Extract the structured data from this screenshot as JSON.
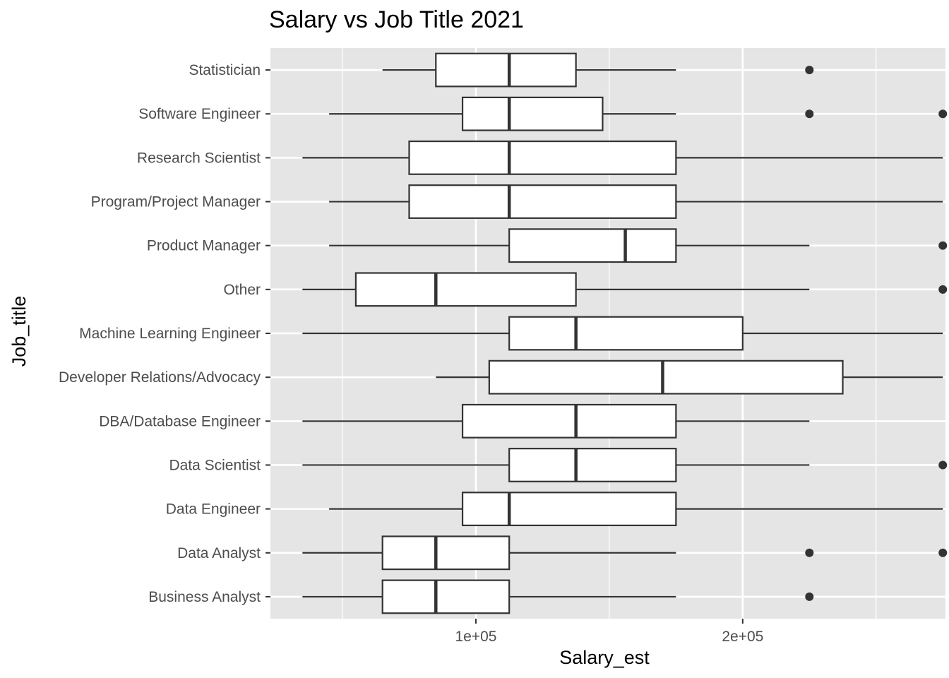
{
  "chart_data": {
    "type": "boxplot",
    "orientation": "horizontal",
    "title": "Salary vs Job Title 2021",
    "xlabel": "Salary_est",
    "ylabel": "Job_title",
    "xlim": [
      23000,
      276000
    ],
    "x_ticks": [
      {
        "value": 100000,
        "label": "1e+05"
      },
      {
        "value": 200000,
        "label": "2e+05"
      }
    ],
    "x_minor_ticks": [
      50000,
      150000,
      250000
    ],
    "grid": true,
    "colors": {
      "panel": "#e5e5e5",
      "grid": "#ffffff",
      "box_fill": "#ffffff",
      "stroke": "#333333"
    },
    "categories": [
      {
        "label": "Business Analyst",
        "whisker_low": 35000,
        "q1": 65000,
        "median": 85000,
        "q3": 112500,
        "whisker_high": 175000,
        "outliers": [
          225000
        ]
      },
      {
        "label": "Data Analyst",
        "whisker_low": 35000,
        "q1": 65000,
        "median": 85000,
        "q3": 112500,
        "whisker_high": 175000,
        "outliers": [
          225000,
          275000
        ]
      },
      {
        "label": "Data Engineer",
        "whisker_low": 45000,
        "q1": 95000,
        "median": 112500,
        "q3": 175000,
        "whisker_high": 275000,
        "outliers": []
      },
      {
        "label": "Data Scientist",
        "whisker_low": 35000,
        "q1": 112500,
        "median": 137500,
        "q3": 175000,
        "whisker_high": 225000,
        "outliers": [
          275000
        ]
      },
      {
        "label": "DBA/Database Engineer",
        "whisker_low": 35000,
        "q1": 95000,
        "median": 137500,
        "q3": 175000,
        "whisker_high": 225000,
        "outliers": []
      },
      {
        "label": "Developer Relations/Advocacy",
        "whisker_low": 85000,
        "q1": 105000,
        "median": 170000,
        "q3": 237500,
        "whisker_high": 275000,
        "outliers": []
      },
      {
        "label": "Machine Learning Engineer",
        "whisker_low": 35000,
        "q1": 112500,
        "median": 137500,
        "q3": 200000,
        "whisker_high": 275000,
        "outliers": []
      },
      {
        "label": "Other",
        "whisker_low": 35000,
        "q1": 55000,
        "median": 85000,
        "q3": 137500,
        "whisker_high": 225000,
        "outliers": [
          275000
        ]
      },
      {
        "label": "Product Manager",
        "whisker_low": 45000,
        "q1": 112500,
        "median": 156000,
        "q3": 175000,
        "whisker_high": 225000,
        "outliers": [
          275000
        ]
      },
      {
        "label": "Program/Project Manager",
        "whisker_low": 45000,
        "q1": 75000,
        "median": 112500,
        "q3": 175000,
        "whisker_high": 275000,
        "outliers": []
      },
      {
        "label": "Research Scientist",
        "whisker_low": 35000,
        "q1": 75000,
        "median": 112500,
        "q3": 175000,
        "whisker_high": 275000,
        "outliers": []
      },
      {
        "label": "Software Engineer",
        "whisker_low": 45000,
        "q1": 95000,
        "median": 112500,
        "q3": 147500,
        "whisker_high": 175000,
        "outliers": [
          225000,
          275000
        ]
      },
      {
        "label": "Statistician",
        "whisker_low": 65000,
        "q1": 85000,
        "median": 112500,
        "q3": 137500,
        "whisker_high": 175000,
        "outliers": [
          225000
        ]
      }
    ]
  }
}
